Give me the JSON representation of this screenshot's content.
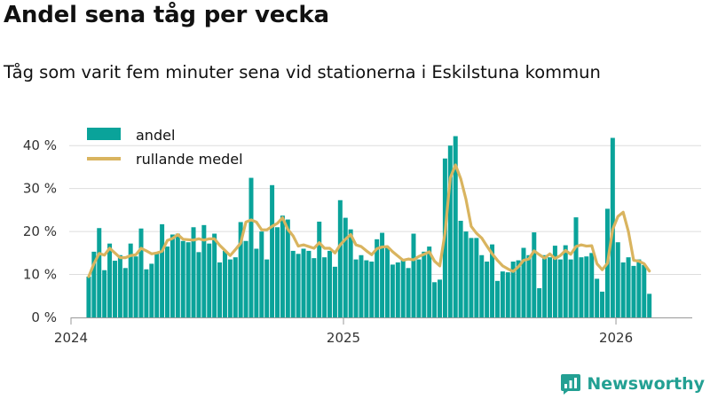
{
  "header": {
    "title": "Andel sena tåg per vecka",
    "subtitle": "Tåg som varit fem minuter sena vid stationerna i Eskilstuna kommun"
  },
  "branding": {
    "name": "Newsworthy",
    "logo_icon": "newsworthy-chart-icon"
  },
  "colors": {
    "bar": "#0aa39a",
    "line": "#d9b45f",
    "grid": "#dddddd",
    "axis": "#999999"
  },
  "chart_data": {
    "type": "bar",
    "title": "Andel sena tåg per vecka",
    "xlabel": "",
    "ylabel": "",
    "ylim": [
      0,
      45
    ],
    "x_range": [
      2024.0,
      2026.28
    ],
    "yticks": [
      {
        "value": 0,
        "label": "0 %"
      },
      {
        "value": 10,
        "label": "10 %"
      },
      {
        "value": 20,
        "label": "20 %"
      },
      {
        "value": 30,
        "label": "30 %"
      },
      {
        "value": 40,
        "label": "40 %"
      }
    ],
    "xticks": [
      {
        "value": 2024,
        "label": "2024"
      },
      {
        "value": 2025,
        "label": "2025"
      },
      {
        "value": 2026,
        "label": "2026"
      }
    ],
    "grid": true,
    "legend": {
      "position": "top-left",
      "items": [
        {
          "name": "andel",
          "symbol": "bar"
        },
        {
          "name": "rullande medel",
          "symbol": "line"
        }
      ]
    },
    "series": [
      {
        "name": "andel",
        "type": "bar",
        "start": 2024.065,
        "step": 0.01923,
        "values": [
          9.5,
          15.3,
          20.8,
          11,
          17.2,
          13.2,
          14.5,
          11.5,
          17.2,
          14.2,
          20.7,
          11.2,
          12.5,
          15,
          21.7,
          16.5,
          19.3,
          19.5,
          17.8,
          17.5,
          21,
          15.2,
          21.5,
          17.2,
          19.5,
          12.8,
          15.5,
          13.5,
          14,
          22.2,
          17.8,
          32.5,
          16,
          20,
          13.5,
          30.8,
          21,
          23.7,
          22.8,
          15.5,
          14.8,
          16,
          15.5,
          13.8,
          22.3,
          14,
          15.5,
          11.8,
          27.3,
          23.2,
          20.5,
          13.5,
          14.5,
          13.3,
          13,
          18.2,
          19.7,
          16.2,
          12.3,
          12.8,
          13.3,
          11.5,
          19.5,
          13.5,
          15.3,
          16.5,
          8.2,
          8.8,
          37,
          40,
          42.2,
          22.5,
          20,
          18.5,
          18.5,
          14.5,
          13,
          17,
          8.5,
          10.7,
          10.5,
          13,
          13.3,
          16.2,
          14.5,
          19.8,
          6.8,
          14.5,
          14,
          16.7,
          13.5,
          16.8,
          13.5,
          23.3,
          14,
          14.2,
          15,
          9,
          6,
          25.3,
          41.8,
          17.5,
          12.8,
          14,
          12,
          13.5,
          12.2,
          5.5
        ]
      },
      {
        "name": "rullande medel",
        "type": "line",
        "start": 2024.065,
        "step": 0.01923,
        "values": [
          9.5,
          12.5,
          14.9,
          14.5,
          16.1,
          15,
          13.9,
          13.9,
          14.4,
          14.6,
          16.1,
          15.5,
          14.8,
          15,
          15.4,
          17.9,
          18.4,
          19.3,
          18.2,
          18.1,
          18,
          18.3,
          18,
          18.3,
          18.3,
          16.8,
          15.6,
          14.4,
          15.8,
          17.3,
          22.2,
          22.7,
          22.2,
          20.4,
          20.4,
          21.2,
          21.9,
          23.2,
          20.5,
          19,
          16.6,
          16.9,
          16.5,
          16.1,
          17.4,
          16.1,
          16.1,
          15,
          16.9,
          18.2,
          19.3,
          16.9,
          16.5,
          15.5,
          14.6,
          16,
          16.4,
          16.5,
          15.3,
          14.3,
          13.3,
          13.6,
          13.4,
          14.2,
          14.7,
          15.3,
          13.1,
          12,
          19.6,
          32.5,
          35.5,
          32.3,
          27.5,
          21.2,
          19.6,
          18.5,
          16.6,
          14.8,
          13.3,
          12,
          11.3,
          10.7,
          11.8,
          13.3,
          13.6,
          15.5,
          14.6,
          13.8,
          14.8,
          13.7,
          14.4,
          15.6,
          14.7,
          16.5,
          16.9,
          16.6,
          16.7,
          12.5,
          11.1,
          12.6,
          20.5,
          23.5,
          24.5,
          20,
          13.3,
          13.1,
          12.5,
          10.8
        ]
      }
    ]
  }
}
